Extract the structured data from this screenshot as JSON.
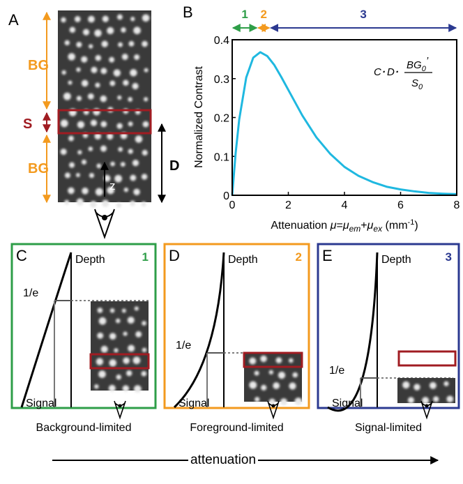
{
  "panel_labels": [
    "A",
    "B",
    "C",
    "D",
    "E"
  ],
  "panel_a": {
    "bg_top": "BG",
    "s": "S",
    "bg_bottom": "BG",
    "d": "D",
    "z": "z"
  },
  "chart_data": {
    "type": "line",
    "ylabel": "Normalized Contrast",
    "xlabel_parts": [
      "Attenuation ",
      "μ",
      "=",
      "μ",
      "em",
      "+",
      "μ",
      "ex",
      " (mm",
      "-1",
      ")"
    ],
    "formula_parts": [
      "C",
      "·",
      "D",
      "·",
      "BG",
      "0",
      "’",
      "S",
      "0"
    ],
    "x": [
      0,
      0.125,
      0.25,
      0.5,
      0.75,
      1,
      1.25,
      1.5,
      1.75,
      2,
      2.5,
      3,
      3.5,
      4,
      4.5,
      5,
      5.5,
      6,
      6.5,
      7,
      7.5,
      8
    ],
    "series": [
      {
        "color": "#1fb8e0",
        "values": [
          0,
          0.11,
          0.195,
          0.303,
          0.354,
          0.368,
          0.358,
          0.335,
          0.304,
          0.271,
          0.205,
          0.149,
          0.106,
          0.073,
          0.05,
          0.034,
          0.022,
          0.015,
          0.01,
          0.006,
          0.004,
          0.003
        ]
      }
    ],
    "xlim": [
      0,
      8
    ],
    "ylim": [
      0,
      0.4
    ],
    "xticks": [
      0,
      2,
      4,
      6,
      8
    ],
    "yticks": [
      0,
      0.1,
      0.2,
      0.3,
      0.4
    ],
    "regions": [
      {
        "label": "1",
        "range": [
          0,
          0.9
        ],
        "color": "#2e9e48"
      },
      {
        "label": "2",
        "range": [
          0.9,
          1.35
        ],
        "color": "#f39a1e"
      },
      {
        "label": "3",
        "range": [
          1.35,
          8
        ],
        "color": "#2b3990"
      }
    ]
  },
  "panels": [
    {
      "number": "1",
      "depth": "Depth",
      "one_over_e": "1/e",
      "signal": "Signal",
      "caption": "Background-limited"
    },
    {
      "number": "2",
      "depth": "Depth",
      "one_over_e": "1/e",
      "signal": "Signal",
      "caption": "Foreground-limited"
    },
    {
      "number": "3",
      "depth": "Depth",
      "one_over_e": "1/e",
      "signal": "Signal",
      "caption": "Signal-limited"
    }
  ],
  "footer": "attenuation"
}
